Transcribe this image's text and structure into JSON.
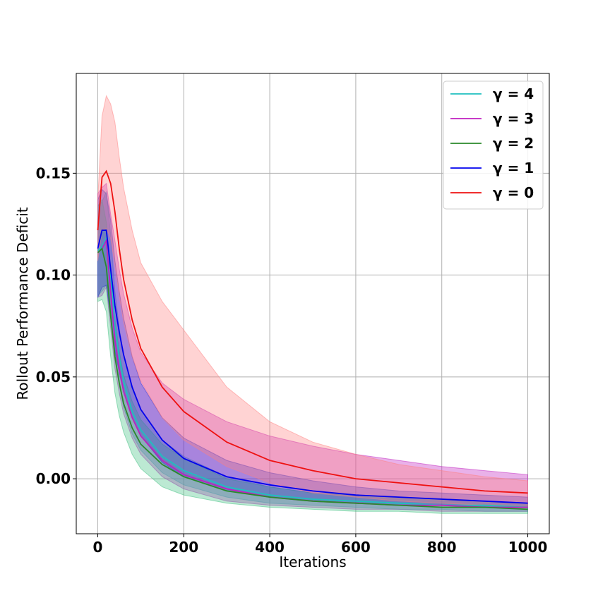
{
  "chart_data": {
    "type": "line",
    "xlabel": "Iterations",
    "ylabel": "Rollout Performance Deficit",
    "xlim": [
      -50,
      1050
    ],
    "ylim": [
      -0.027,
      0.199
    ],
    "xticks": [
      0,
      200,
      400,
      600,
      800,
      1000
    ],
    "yticks": [
      0.0,
      0.05,
      0.1,
      0.15
    ],
    "xtick_labels": [
      "0",
      "200",
      "400",
      "600",
      "800",
      "1000"
    ],
    "ytick_labels": [
      "0.00",
      "0.05",
      "0.10",
      "0.15"
    ],
    "grid": true,
    "legend_position": "top-right",
    "series": [
      {
        "name": "γ = 4",
        "color": "#1fbfbf",
        "band_color": "#1fbfbf",
        "x": [
          0,
          10,
          20,
          30,
          40,
          50,
          60,
          80,
          100,
          150,
          200,
          300,
          400,
          500,
          600,
          700,
          800,
          900,
          1000
        ],
        "y": [
          0.112,
          0.114,
          0.118,
          0.1,
          0.075,
          0.06,
          0.048,
          0.033,
          0.024,
          0.011,
          0.004,
          -0.004,
          -0.008,
          -0.01,
          -0.011,
          -0.012,
          -0.013,
          -0.013,
          -0.014
        ],
        "lower": [
          0.09,
          0.092,
          0.095,
          0.08,
          0.058,
          0.046,
          0.035,
          0.022,
          0.014,
          0.003,
          -0.003,
          -0.009,
          -0.012,
          -0.013,
          -0.014,
          -0.015,
          -0.015,
          -0.016,
          -0.016
        ],
        "upper": [
          0.134,
          0.136,
          0.141,
          0.12,
          0.092,
          0.074,
          0.061,
          0.044,
          0.034,
          0.019,
          0.011,
          0.001,
          -0.004,
          -0.007,
          -0.008,
          -0.009,
          -0.01,
          -0.011,
          -0.012
        ]
      },
      {
        "name": "γ = 3",
        "color": "#bf1fbf",
        "band_color": "#bf1fbf",
        "x": [
          0,
          10,
          20,
          30,
          40,
          50,
          60,
          80,
          100,
          150,
          200,
          300,
          400,
          500,
          600,
          700,
          800,
          900,
          1000
        ],
        "y": [
          0.111,
          0.113,
          0.117,
          0.092,
          0.068,
          0.054,
          0.043,
          0.03,
          0.021,
          0.009,
          0.002,
          -0.005,
          -0.009,
          -0.011,
          -0.012,
          -0.013,
          -0.013,
          -0.014,
          -0.014
        ],
        "lower": [
          0.089,
          0.09,
          0.094,
          0.074,
          0.054,
          0.042,
          0.032,
          0.02,
          0.012,
          0.001,
          -0.005,
          -0.011,
          -0.013,
          -0.014,
          -0.015,
          -0.015,
          -0.016,
          -0.016,
          -0.016
        ],
        "upper": [
          0.14,
          0.143,
          0.145,
          0.13,
          0.117,
          0.103,
          0.091,
          0.074,
          0.062,
          0.047,
          0.039,
          0.028,
          0.021,
          0.016,
          0.012,
          0.009,
          0.006,
          0.004,
          0.002
        ]
      },
      {
        "name": "γ = 2",
        "color": "#2a8a2a",
        "band_color": "#40bf80",
        "x": [
          0,
          10,
          20,
          30,
          40,
          50,
          60,
          80,
          100,
          150,
          200,
          300,
          400,
          500,
          600,
          700,
          800,
          900,
          1000
        ],
        "y": [
          0.111,
          0.113,
          0.104,
          0.08,
          0.06,
          0.047,
          0.037,
          0.025,
          0.017,
          0.007,
          0.001,
          -0.006,
          -0.009,
          -0.011,
          -0.012,
          -0.013,
          -0.014,
          -0.014,
          -0.015
        ],
        "lower": [
          0.087,
          0.088,
          0.082,
          0.06,
          0.042,
          0.031,
          0.023,
          0.012,
          0.005,
          -0.004,
          -0.008,
          -0.012,
          -0.014,
          -0.015,
          -0.016,
          -0.016,
          -0.017,
          -0.017,
          -0.017
        ],
        "upper": [
          0.134,
          0.137,
          0.126,
          0.1,
          0.078,
          0.063,
          0.051,
          0.038,
          0.029,
          0.017,
          0.01,
          0.0,
          -0.004,
          -0.007,
          -0.008,
          -0.009,
          -0.01,
          -0.011,
          -0.012
        ]
      },
      {
        "name": "γ = 1",
        "color": "#0000ee",
        "band_color": "#3030c8",
        "x": [
          0,
          10,
          20,
          30,
          40,
          50,
          60,
          80,
          100,
          150,
          200,
          300,
          400,
          500,
          600,
          700,
          800,
          900,
          1000
        ],
        "y": [
          0.113,
          0.122,
          0.122,
          0.103,
          0.085,
          0.072,
          0.061,
          0.045,
          0.034,
          0.019,
          0.01,
          0.001,
          -0.003,
          -0.006,
          -0.008,
          -0.009,
          -0.01,
          -0.011,
          -0.012
        ],
        "lower": [
          0.089,
          0.094,
          0.095,
          0.079,
          0.063,
          0.052,
          0.043,
          0.03,
          0.021,
          0.008,
          0.001,
          -0.006,
          -0.009,
          -0.011,
          -0.012,
          -0.013,
          -0.013,
          -0.014,
          -0.014
        ],
        "upper": [
          0.137,
          0.142,
          0.14,
          0.127,
          0.107,
          0.092,
          0.079,
          0.06,
          0.047,
          0.03,
          0.02,
          0.009,
          0.003,
          -0.001,
          -0.004,
          -0.006,
          -0.007,
          -0.008,
          -0.009
        ]
      },
      {
        "name": "γ = 0",
        "color": "#ee1111",
        "band_color": "#ff8080",
        "x": [
          0,
          10,
          20,
          30,
          40,
          50,
          60,
          80,
          100,
          150,
          200,
          300,
          400,
          500,
          600,
          700,
          800,
          900,
          1000
        ],
        "y": [
          0.122,
          0.148,
          0.151,
          0.145,
          0.131,
          0.113,
          0.098,
          0.078,
          0.064,
          0.045,
          0.033,
          0.018,
          0.009,
          0.004,
          0.0,
          -0.002,
          -0.004,
          -0.006,
          -0.007
        ],
        "lower": [
          0.107,
          0.122,
          0.123,
          0.118,
          0.105,
          0.09,
          0.077,
          0.06,
          0.048,
          0.03,
          0.019,
          0.006,
          -0.002,
          -0.007,
          -0.009,
          -0.011,
          -0.012,
          -0.013,
          -0.014
        ],
        "upper": [
          0.137,
          0.178,
          0.188,
          0.184,
          0.175,
          0.158,
          0.143,
          0.122,
          0.106,
          0.087,
          0.073,
          0.045,
          0.028,
          0.018,
          0.012,
          0.007,
          0.004,
          0.001,
          -0.001
        ]
      }
    ]
  }
}
